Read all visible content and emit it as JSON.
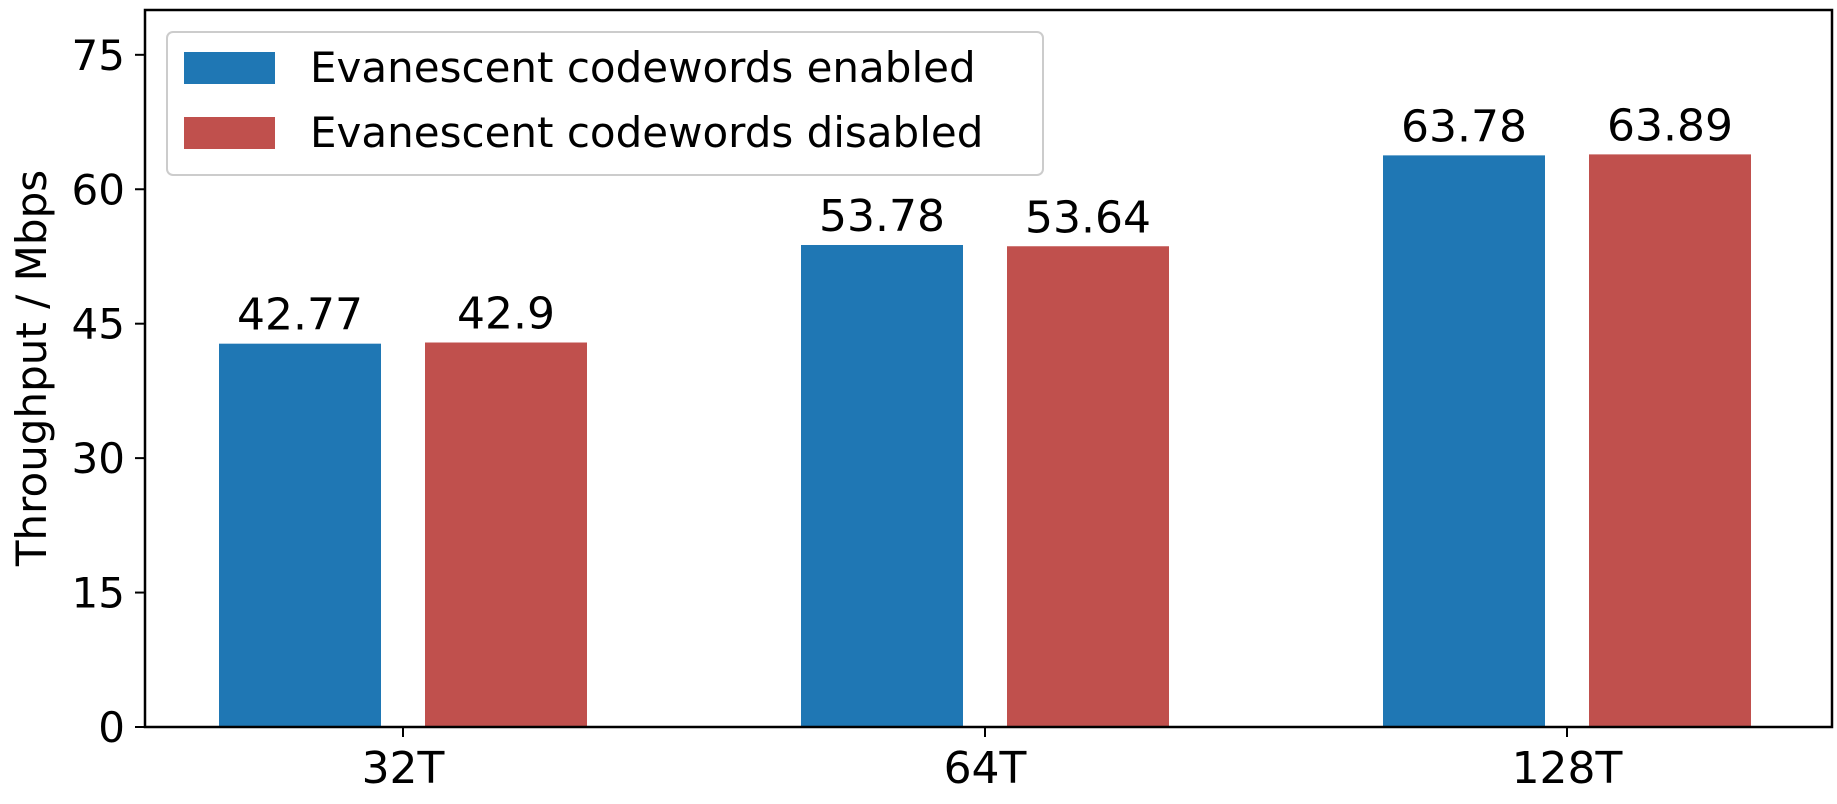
{
  "chart_data": {
    "type": "bar",
    "categories": [
      "32T",
      "64T",
      "128T"
    ],
    "series": [
      {
        "name": "Evanescent codewords enabled",
        "values": [
          42.77,
          53.78,
          63.78
        ],
        "labels": [
          "42.77",
          "53.78",
          "63.78"
        ],
        "color": "#1f77b4"
      },
      {
        "name": "Evanescent codewords disabled",
        "values": [
          42.9,
          53.64,
          63.89
        ],
        "labels": [
          "42.9",
          "53.64",
          "63.89"
        ],
        "color": "#c0504d"
      }
    ],
    "xlabel": "",
    "ylabel": "Throughput / Mbps",
    "ylim": [
      0,
      80
    ],
    "yticks": [
      0,
      15,
      30,
      45,
      60,
      75
    ],
    "grid": false,
    "legend_position": "top-left"
  }
}
